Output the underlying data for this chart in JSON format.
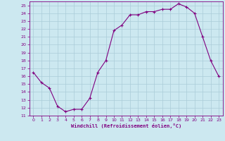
{
  "x": [
    0,
    1,
    2,
    3,
    4,
    5,
    6,
    7,
    8,
    9,
    10,
    11,
    12,
    13,
    14,
    15,
    16,
    17,
    18,
    19,
    20,
    21,
    22,
    23
  ],
  "y": [
    16.5,
    15.2,
    14.5,
    12.2,
    11.5,
    11.8,
    11.8,
    13.2,
    16.5,
    18.0,
    21.8,
    22.5,
    23.8,
    23.8,
    24.2,
    24.2,
    24.5,
    24.5,
    25.2,
    24.8,
    24.0,
    21.0,
    18.0,
    16.0
  ],
  "line_color": "#800080",
  "marker": "+",
  "marker_size": 3,
  "bg_color": "#cce8f0",
  "grid_color": "#aaccd8",
  "xlabel": "Windchill (Refroidissement éolien,°C)",
  "ylim": [
    11,
    25.5
  ],
  "yticks": [
    11,
    12,
    13,
    14,
    15,
    16,
    17,
    18,
    19,
    20,
    21,
    22,
    23,
    24,
    25
  ],
  "xlim": [
    -0.5,
    23.5
  ],
  "xticks": [
    0,
    1,
    2,
    3,
    4,
    5,
    6,
    7,
    8,
    9,
    10,
    11,
    12,
    13,
    14,
    15,
    16,
    17,
    18,
    19,
    20,
    21,
    22,
    23
  ]
}
